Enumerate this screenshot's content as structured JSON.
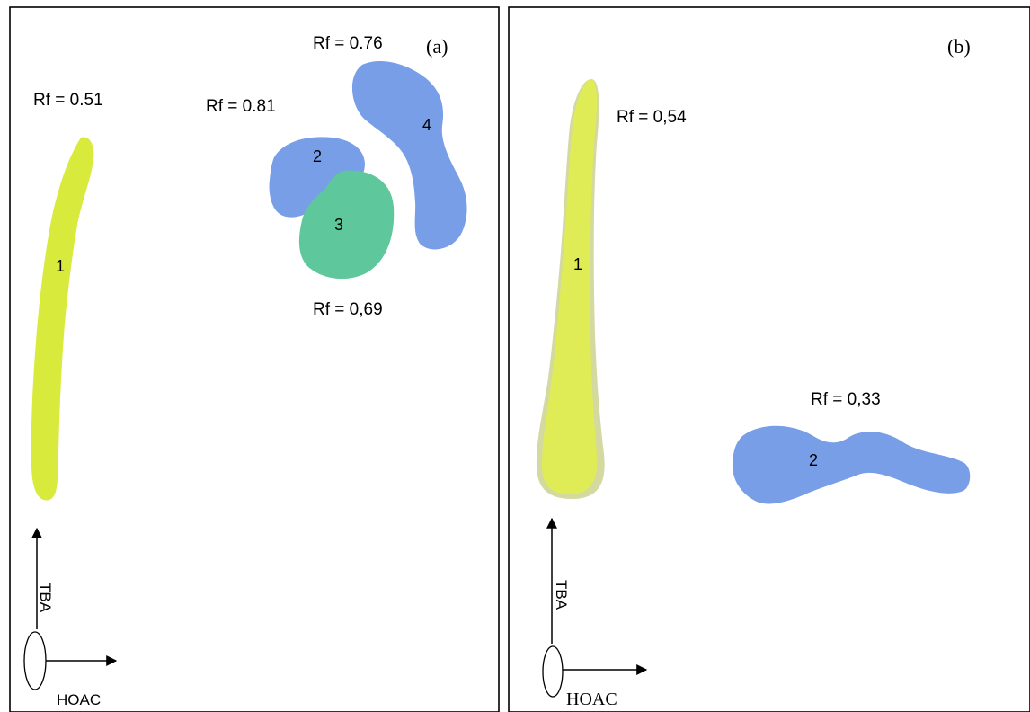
{
  "panel_a": {
    "tag": "(a)",
    "spots": [
      {
        "number": "1",
        "rf": "Rf = 0.51",
        "color": "#d8ea3c"
      },
      {
        "number": "2",
        "rf": "Rf = 0.81",
        "color": "#779ee6"
      },
      {
        "number": "3",
        "rf": "Rf = 0,69",
        "color": "#5ec79b"
      },
      {
        "number": "4",
        "rf": "Rf = 0.76",
        "color": "#779ee6"
      }
    ],
    "axis_vertical": "TBA",
    "axis_horizontal": "HOAC"
  },
  "panel_b": {
    "tag": "(b)",
    "spots": [
      {
        "number": "1",
        "rf": "Rf = 0,54",
        "color": "#dfec55"
      },
      {
        "number": "2",
        "rf": "Rf = 0,33",
        "color": "#779ee6"
      }
    ],
    "axis_vertical": "TBA",
    "axis_horizontal": "HOAC"
  }
}
